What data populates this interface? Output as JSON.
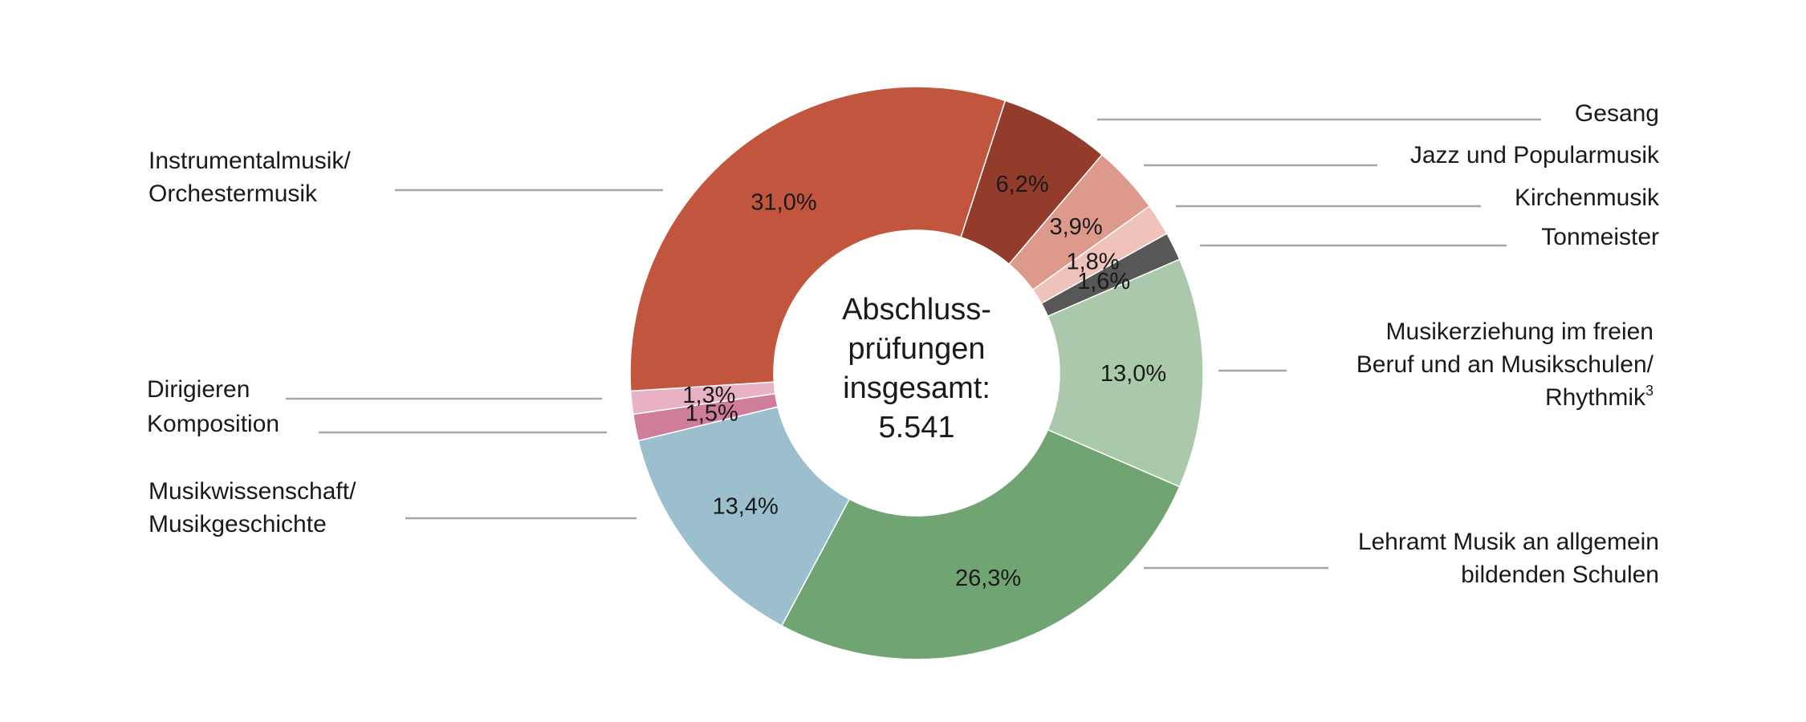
{
  "chart_data": {
    "type": "pie",
    "subtype": "donut",
    "center_label": [
      "Abschluss-",
      "prüfungen",
      "insgesamt:",
      "5.541"
    ],
    "slices": [
      {
        "key": "gesang",
        "label": [
          "Gesang"
        ],
        "value": 6.2,
        "display": "6,2%",
        "color": "#943c2c",
        "label_side": "right"
      },
      {
        "key": "jazz",
        "label": [
          "Jazz und Popularmusik"
        ],
        "value": 3.9,
        "display": "3,9%",
        "color": "#dd998b",
        "label_side": "right"
      },
      {
        "key": "kirchenmusik",
        "label": [
          "Kirchenmusik"
        ],
        "value": 1.8,
        "display": "1,8%",
        "color": "#efc2ba",
        "label_side": "right"
      },
      {
        "key": "tonmeister",
        "label": [
          "Tonmeister"
        ],
        "value": 1.6,
        "display": "1,6%",
        "color": "#575757",
        "label_side": "right"
      },
      {
        "key": "musikerziehung",
        "label": [
          "Musikerziehung im freien",
          "Beruf und an Musikschulen/",
          "Rhythmik"
        ],
        "label_superscript": "3",
        "value": 13.0,
        "display": "13,0%",
        "color": "#aac9aa",
        "label_side": "right"
      },
      {
        "key": "lehramt",
        "label": [
          "Lehramt Musik an allgemein",
          "bildenden Schulen"
        ],
        "value": 26.3,
        "display": "26,3%",
        "color": "#71a473",
        "label_side": "right"
      },
      {
        "key": "musikwissenschaft",
        "label": [
          "Musikwissenschaft/",
          "Musikgeschichte"
        ],
        "value": 13.4,
        "display": "13,4%",
        "color": "#9bbfcd",
        "label_side": "left"
      },
      {
        "key": "komposition",
        "label": [
          "Komposition"
        ],
        "value": 1.5,
        "display": "1,5%",
        "color": "#d07c9b",
        "label_side": "left"
      },
      {
        "key": "dirigieren",
        "label": [
          "Dirigieren"
        ],
        "value": 1.3,
        "display": "1,3%",
        "color": "#e8b1c4",
        "label_side": "left"
      },
      {
        "key": "instrumentalmusik",
        "label": [
          "Instrumentalmusik/",
          "Orchestermusik"
        ],
        "value": 31.0,
        "display": "31,0%",
        "color": "#c1553e",
        "label_side": "left"
      }
    ],
    "start_angle_deg": 18,
    "direction": "clockwise",
    "leader_line_color": "#a6a6a6"
  }
}
